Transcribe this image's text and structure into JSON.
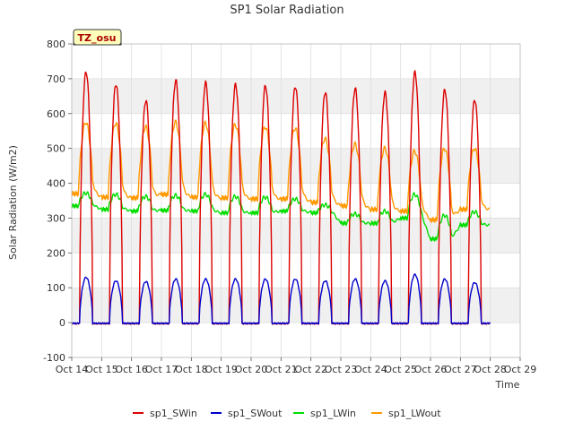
{
  "chart_data": {
    "type": "line",
    "title": "SP1 Solar Radiation",
    "xlabel": "Time",
    "ylabel": "Solar Radiation (W/m2)",
    "annotation": "TZ_osu",
    "ylim": [
      -100,
      800
    ],
    "yticks": [
      -100,
      0,
      100,
      200,
      300,
      400,
      500,
      600,
      700,
      800
    ],
    "xlim": [
      "Oct 14",
      "Oct 29"
    ],
    "xticks": [
      "Oct 14",
      "Oct 15",
      "Oct 16",
      "Oct 17",
      "Oct 18",
      "Oct 19",
      "Oct 20",
      "Oct 21",
      "Oct 22",
      "Oct 23",
      "Oct 24",
      "Oct 25",
      "Oct 26",
      "Oct 27",
      "Oct 28",
      "Oct 29"
    ],
    "grid": true,
    "legend_position": "bottom",
    "days": [
      "Oct 14",
      "Oct 15",
      "Oct 16",
      "Oct 17",
      "Oct 18",
      "Oct 19",
      "Oct 20",
      "Oct 21",
      "Oct 22",
      "Oct 23",
      "Oct 24",
      "Oct 25",
      "Oct 26",
      "Oct 27"
    ],
    "series": [
      {
        "name": "sp1_SWin",
        "color": "#dd0000",
        "daily_peak": [
          720,
          685,
          638,
          695,
          688,
          683,
          680,
          678,
          662,
          672,
          660,
          718,
          668,
          640
        ]
      },
      {
        "name": "sp1_SWout",
        "color": "#0000cc",
        "daily_peak": [
          130,
          120,
          118,
          125,
          125,
          125,
          125,
          125,
          120,
          125,
          120,
          138,
          125,
          115
        ]
      },
      {
        "name": "sp1_LWin",
        "color": "#00dd00",
        "night_value": [
          335,
          325,
          320,
          322,
          320,
          315,
          315,
          320,
          315,
          285,
          285,
          300,
          240,
          280
        ],
        "day_value": [
          372,
          368,
          362,
          365,
          368,
          362,
          360,
          355,
          338,
          312,
          320,
          368,
          308,
          318
        ]
      },
      {
        "name": "sp1_LWout",
        "color": "#ff9900",
        "night_value": [
          370,
          360,
          358,
          368,
          360,
          358,
          355,
          355,
          345,
          335,
          325,
          320,
          295,
          325
        ],
        "day_value": [
          575,
          572,
          562,
          575,
          572,
          568,
          562,
          558,
          528,
          512,
          500,
          492,
          500,
          500
        ]
      }
    ]
  }
}
